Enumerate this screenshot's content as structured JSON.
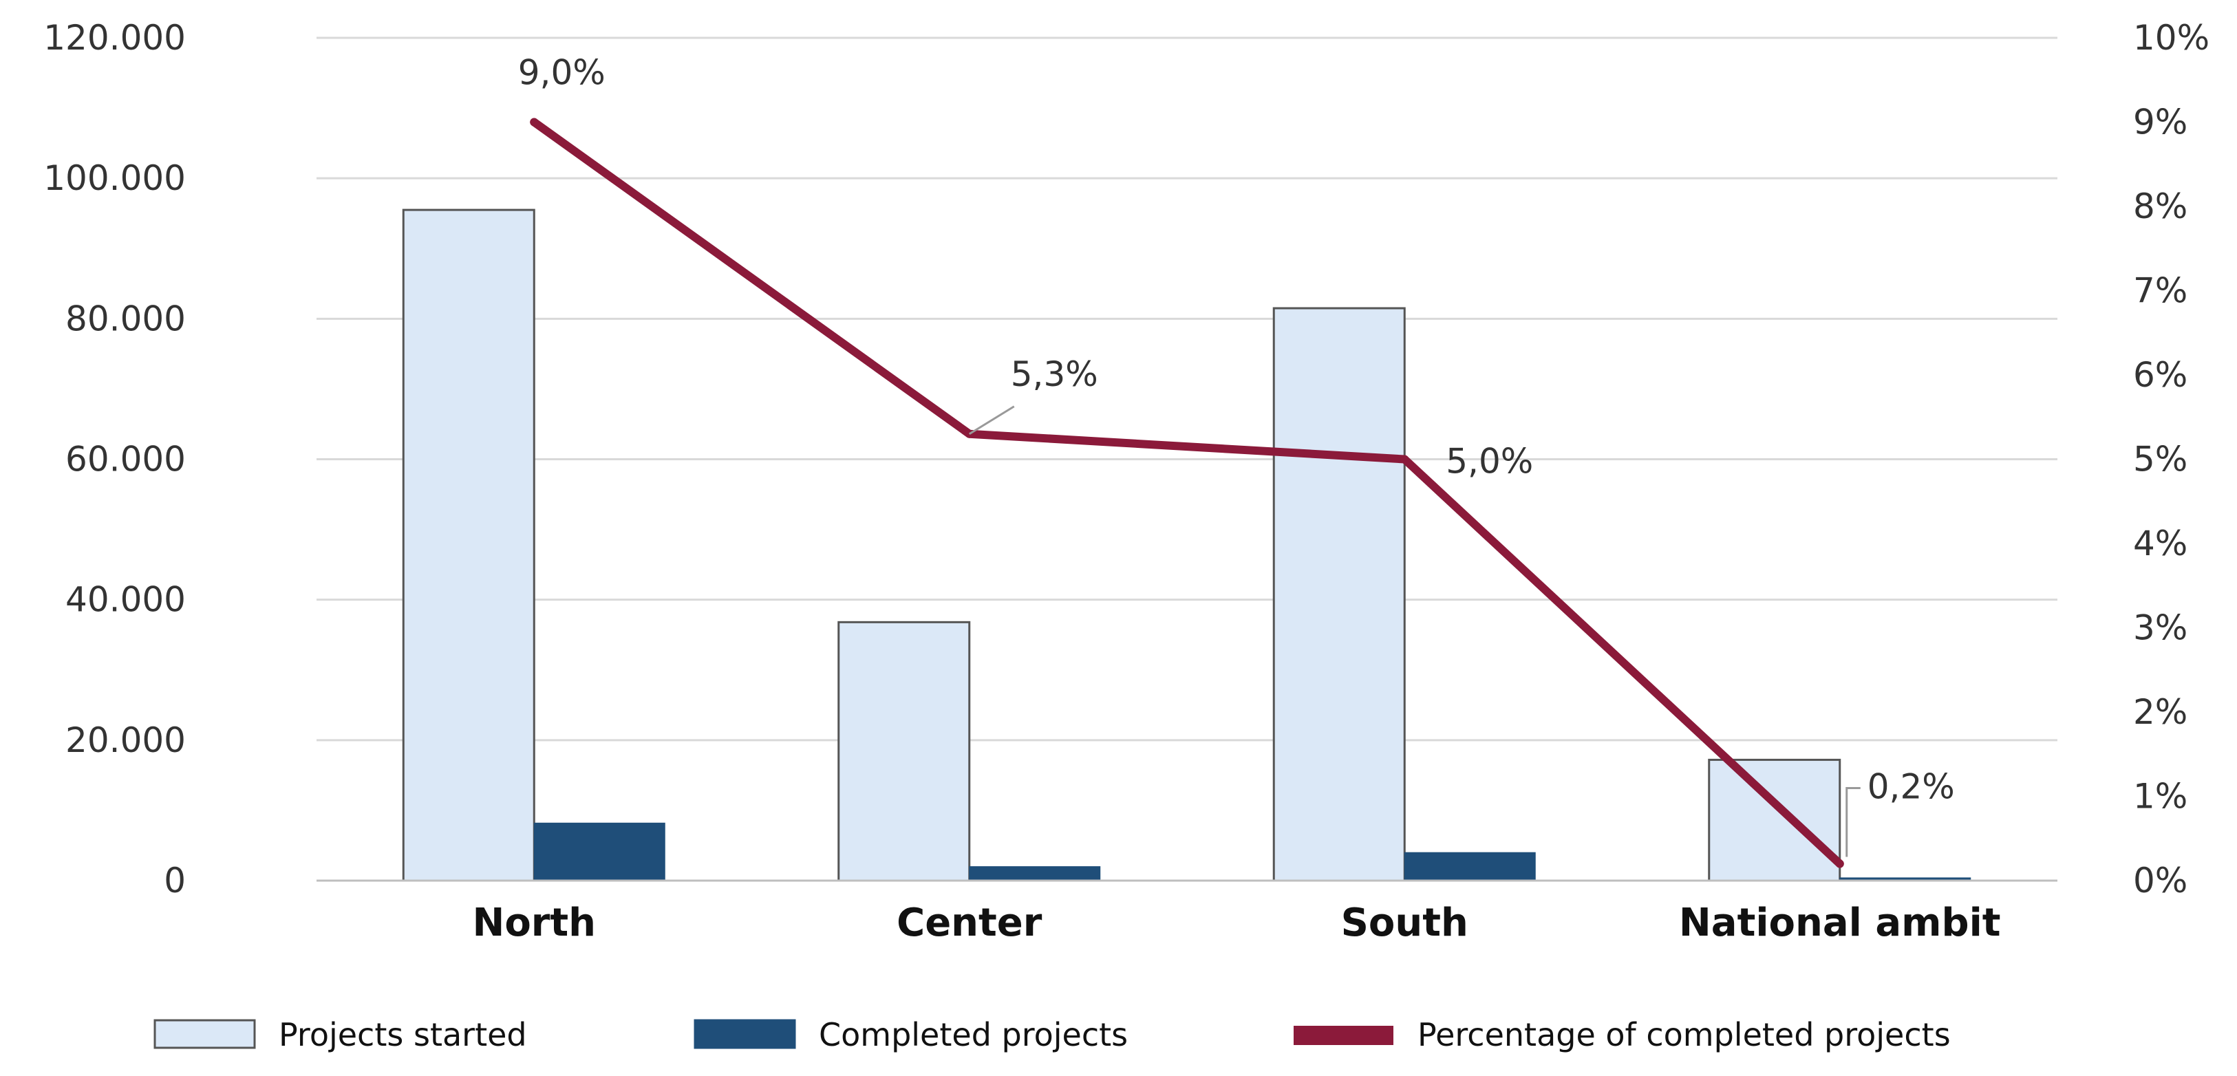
{
  "chart_data": {
    "type": "bar",
    "categories": [
      "North",
      "Center",
      "South",
      "National ambit"
    ],
    "series": [
      {
        "name": "Projects started",
        "kind": "bar",
        "axis": "left",
        "color": "#dbe8f7",
        "values": [
          95500,
          36800,
          81500,
          17200
        ]
      },
      {
        "name": "Completed projects",
        "kind": "bar",
        "axis": "left",
        "color": "#1f4e79",
        "values": [
          8200,
          2000,
          4000,
          400
        ]
      },
      {
        "name": "Percentage of completed projects",
        "kind": "line",
        "axis": "right",
        "color": "#8b1a3a",
        "values": [
          9.0,
          5.3,
          5.0,
          0.2
        ]
      }
    ],
    "data_labels": [
      "9,0%",
      "5,3%",
      "5,0%",
      "0,2%"
    ],
    "y_left": {
      "ticks": [
        0,
        20000,
        40000,
        60000,
        80000,
        100000,
        120000
      ],
      "tick_labels": [
        "0",
        "20.000",
        "40.000",
        "60.000",
        "80.000",
        "100.000",
        "120.000"
      ],
      "range": [
        0,
        120000
      ]
    },
    "y_right": {
      "ticks": [
        0,
        1,
        2,
        3,
        4,
        5,
        6,
        7,
        8,
        9,
        10
      ],
      "tick_labels": [
        "0%",
        "1%",
        "2%",
        "3%",
        "4%",
        "5%",
        "6%",
        "7%",
        "8%",
        "9%",
        "10%"
      ],
      "range": [
        0,
        10
      ]
    },
    "grid": true,
    "legend_position": "bottom"
  }
}
